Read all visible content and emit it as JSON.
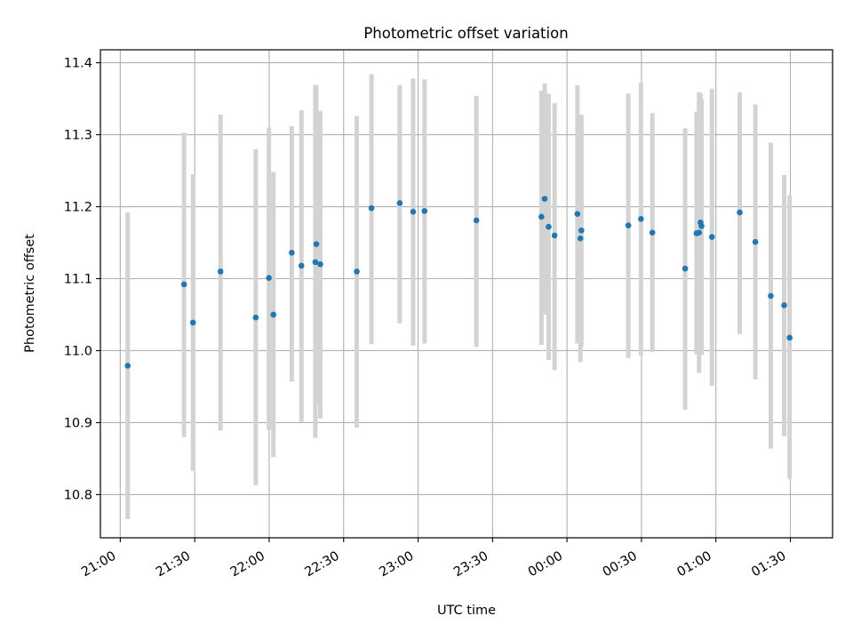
{
  "chart_data": {
    "type": "scatter",
    "title": "Photometric offset variation",
    "xlabel": "UTC time",
    "ylabel": "Photometric offset",
    "x_unit": "minutes",
    "xlim": [
      -8,
      287
    ],
    "ylim": [
      10.74,
      11.418
    ],
    "xticks": [
      {
        "value": 0,
        "label": "21:00"
      },
      {
        "value": 30,
        "label": "21:30"
      },
      {
        "value": 60,
        "label": "22:00"
      },
      {
        "value": 90,
        "label": "22:30"
      },
      {
        "value": 120,
        "label": "23:00"
      },
      {
        "value": 150,
        "label": "23:30"
      },
      {
        "value": 180,
        "label": "00:00"
      },
      {
        "value": 210,
        "label": "00:30"
      },
      {
        "value": 240,
        "label": "01:00"
      },
      {
        "value": 270,
        "label": "01:30"
      }
    ],
    "yticks": [
      {
        "value": 10.8,
        "label": "10.8"
      },
      {
        "value": 10.9,
        "label": "10.9"
      },
      {
        "value": 11.0,
        "label": "11.0"
      },
      {
        "value": 11.1,
        "label": "11.1"
      },
      {
        "value": 11.2,
        "label": "11.2"
      },
      {
        "value": 11.3,
        "label": "11.3"
      },
      {
        "value": 11.4,
        "label": "11.4"
      }
    ],
    "grid": true,
    "colors": {
      "marker": "#1f77b4",
      "errorbar": "#d3d3d3",
      "grid": "#b0b0b0",
      "axes": "#000000"
    },
    "points": [
      {
        "x": 3.0,
        "y": 10.979,
        "ylo": 10.766,
        "yhi": 11.192
      },
      {
        "x": 25.7,
        "y": 11.092,
        "ylo": 10.88,
        "yhi": 11.303
      },
      {
        "x": 29.3,
        "y": 11.039,
        "ylo": 10.833,
        "yhi": 11.245
      },
      {
        "x": 40.4,
        "y": 11.11,
        "ylo": 10.889,
        "yhi": 11.328
      },
      {
        "x": 54.6,
        "y": 11.046,
        "ylo": 10.813,
        "yhi": 11.28
      },
      {
        "x": 59.9,
        "y": 11.101,
        "ylo": 10.89,
        "yhi": 11.31
      },
      {
        "x": 61.7,
        "y": 11.05,
        "ylo": 10.852,
        "yhi": 11.248
      },
      {
        "x": 69.1,
        "y": 11.136,
        "ylo": 10.957,
        "yhi": 11.312
      },
      {
        "x": 73.0,
        "y": 11.118,
        "ylo": 10.901,
        "yhi": 11.334
      },
      {
        "x": 78.6,
        "y": 11.123,
        "ylo": 10.879,
        "yhi": 11.369
      },
      {
        "x": 79.0,
        "y": 11.148,
        "ylo": 10.927,
        "yhi": 11.369
      },
      {
        "x": 80.6,
        "y": 11.12,
        "ylo": 10.906,
        "yhi": 11.333
      },
      {
        "x": 95.3,
        "y": 11.11,
        "ylo": 10.893,
        "yhi": 11.326
      },
      {
        "x": 101.2,
        "y": 11.198,
        "ylo": 11.009,
        "yhi": 11.384
      },
      {
        "x": 112.6,
        "y": 11.205,
        "ylo": 11.038,
        "yhi": 11.369
      },
      {
        "x": 118.0,
        "y": 11.193,
        "ylo": 11.007,
        "yhi": 11.378
      },
      {
        "x": 122.6,
        "y": 11.194,
        "ylo": 11.01,
        "yhi": 11.377
      },
      {
        "x": 143.5,
        "y": 11.181,
        "ylo": 11.005,
        "yhi": 11.354
      },
      {
        "x": 169.7,
        "y": 11.186,
        "ylo": 11.008,
        "yhi": 11.361
      },
      {
        "x": 171.0,
        "y": 11.211,
        "ylo": 11.05,
        "yhi": 11.371
      },
      {
        "x": 172.6,
        "y": 11.172,
        "ylo": 10.987,
        "yhi": 11.357
      },
      {
        "x": 175.0,
        "y": 11.16,
        "ylo": 10.973,
        "yhi": 11.344
      },
      {
        "x": 184.2,
        "y": 11.19,
        "ylo": 11.01,
        "yhi": 11.369
      },
      {
        "x": 185.4,
        "y": 11.156,
        "ylo": 10.984,
        "yhi": 11.326
      },
      {
        "x": 185.8,
        "y": 11.167,
        "ylo": 11.006,
        "yhi": 11.328
      },
      {
        "x": 204.7,
        "y": 11.174,
        "ylo": 10.99,
        "yhi": 11.357
      },
      {
        "x": 209.8,
        "y": 11.183,
        "ylo": 10.993,
        "yhi": 11.372
      },
      {
        "x": 214.4,
        "y": 11.164,
        "ylo": 10.998,
        "yhi": 11.33
      },
      {
        "x": 227.6,
        "y": 11.114,
        "ylo": 10.918,
        "yhi": 11.309
      },
      {
        "x": 232.2,
        "y": 11.163,
        "ylo": 10.995,
        "yhi": 11.332
      },
      {
        "x": 233.2,
        "y": 11.164,
        "ylo": 10.969,
        "yhi": 11.359
      },
      {
        "x": 233.8,
        "y": 11.178,
        "ylo": 10.995,
        "yhi": 11.357
      },
      {
        "x": 234.2,
        "y": 11.173,
        "ylo": 10.994,
        "yhi": 11.349
      },
      {
        "x": 238.4,
        "y": 11.158,
        "ylo": 10.951,
        "yhi": 11.364
      },
      {
        "x": 249.6,
        "y": 11.192,
        "ylo": 11.023,
        "yhi": 11.359
      },
      {
        "x": 255.9,
        "y": 11.151,
        "ylo": 10.96,
        "yhi": 11.342
      },
      {
        "x": 262.1,
        "y": 11.076,
        "ylo": 10.864,
        "yhi": 11.289
      },
      {
        "x": 267.5,
        "y": 11.063,
        "ylo": 10.881,
        "yhi": 11.244
      },
      {
        "x": 269.7,
        "y": 11.018,
        "ylo": 10.822,
        "yhi": 11.216
      }
    ]
  }
}
